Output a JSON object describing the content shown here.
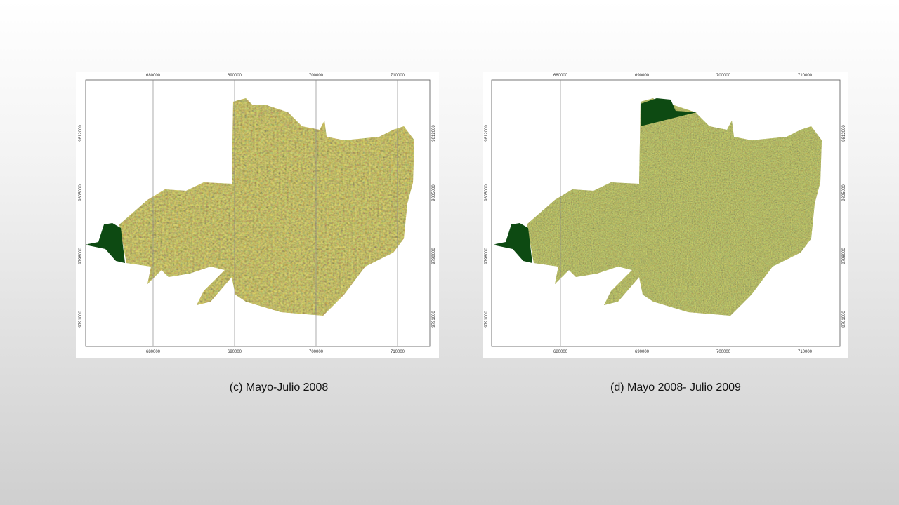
{
  "slide": {
    "panels": [
      {
        "caption": "(c) Mayo-Julio 2008",
        "x_ticks": [
          "680000",
          "690000",
          "700000",
          "710000"
        ],
        "y_ticks": [
          "9812000",
          "9805000",
          "9798000",
          "9791000"
        ]
      },
      {
        "caption": "(d) Mayo 2008- Julio 2009",
        "x_ticks": [
          "680000",
          "690000",
          "700000",
          "710000"
        ],
        "y_ticks": [
          "9812000",
          "9805000",
          "9798000",
          "9791000"
        ]
      }
    ]
  }
}
